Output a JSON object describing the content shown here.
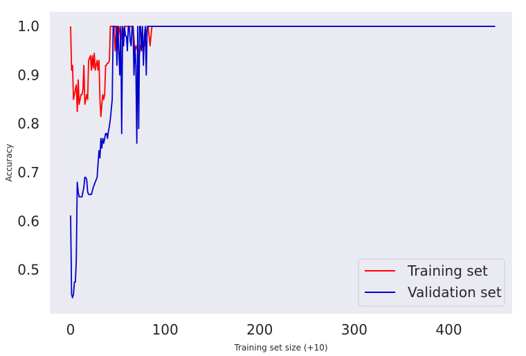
{
  "chart_data": {
    "type": "line",
    "title": "",
    "xlabel": "Training set size (+10)",
    "ylabel": "Accuracy",
    "xlim": [
      -22,
      467
    ],
    "ylim": [
      0.41,
      1.03
    ],
    "xticks": [
      0,
      100,
      200,
      300,
      400
    ],
    "yticks": [
      0.5,
      0.6,
      0.7,
      0.8,
      0.9,
      1.0
    ],
    "xtick_labels": [
      "0",
      "100",
      "200",
      "300",
      "400"
    ],
    "ytick_labels": [
      "0.5",
      "0.6",
      "0.7",
      "0.8",
      "0.9",
      "1.0"
    ],
    "grid": false,
    "background": "#eaeaf2",
    "legend_position": "lower-right",
    "series": [
      {
        "name": "Training set",
        "color": "#ff0000",
        "x": [
          0,
          1,
          2,
          3,
          4,
          5,
          6,
          7,
          8,
          9,
          10,
          11,
          12,
          13,
          14,
          15,
          16,
          17,
          18,
          19,
          20,
          21,
          22,
          23,
          24,
          25,
          26,
          27,
          28,
          29,
          30,
          31,
          32,
          33,
          34,
          35,
          36,
          37,
          38,
          39,
          40,
          41,
          42,
          43,
          44,
          45,
          46,
          47,
          48,
          49,
          50,
          51,
          52,
          53,
          54,
          55,
          56,
          57,
          58,
          60,
          62,
          64,
          66,
          68,
          70,
          72,
          74,
          76,
          78,
          80,
          82,
          84,
          86,
          88,
          90,
          100,
          150,
          200,
          250,
          300,
          350,
          400,
          449
        ],
        "y": [
          1.0,
          0.91,
          0.92,
          0.85,
          0.86,
          0.87,
          0.88,
          0.825,
          0.89,
          0.84,
          0.85,
          0.86,
          0.86,
          0.87,
          0.92,
          0.84,
          0.85,
          0.86,
          0.85,
          0.93,
          0.935,
          0.94,
          0.91,
          0.94,
          0.915,
          0.945,
          0.91,
          0.92,
          0.93,
          0.91,
          0.93,
          0.85,
          0.815,
          0.84,
          0.86,
          0.85,
          0.86,
          0.92,
          0.92,
          0.925,
          0.925,
          0.93,
          1.0,
          1.0,
          1.0,
          1.0,
          1.0,
          0.95,
          0.98,
          1.0,
          0.97,
          1.0,
          0.99,
          0.97,
          0.98,
          1.0,
          0.98,
          1.0,
          1.0,
          1.0,
          1.0,
          1.0,
          1.0,
          0.95,
          0.96,
          0.93,
          0.96,
          0.97,
          0.96,
          0.99,
          1.0,
          0.96,
          1.0,
          1.0,
          1.0,
          1.0,
          1.0,
          1.0,
          1.0,
          1.0,
          1.0,
          1.0,
          1.0
        ]
      },
      {
        "name": "Validation set",
        "color": "#0000cc",
        "x": [
          0,
          1,
          2,
          3,
          4,
          5,
          6,
          7,
          8,
          9,
          10,
          12,
          14,
          15,
          16,
          17,
          18,
          19,
          20,
          22,
          24,
          26,
          28,
          30,
          31,
          32,
          33,
          34,
          35,
          36,
          37,
          38,
          39,
          40,
          41,
          42,
          43,
          44,
          45,
          46,
          47,
          48,
          49,
          50,
          51,
          52,
          53,
          54,
          55,
          56,
          57,
          58,
          59,
          60,
          61,
          62,
          63,
          64,
          65,
          66,
          67,
          68,
          69,
          70,
          71,
          72,
          73,
          74,
          75,
          76,
          77,
          78,
          79,
          80,
          81,
          82,
          83,
          84,
          85,
          86,
          87,
          88,
          89,
          90,
          100,
          150,
          200,
          250,
          300,
          350,
          400,
          449
        ],
        "y": [
          0.612,
          0.45,
          0.443,
          0.45,
          0.475,
          0.475,
          0.52,
          0.68,
          0.66,
          0.65,
          0.65,
          0.65,
          0.67,
          0.69,
          0.69,
          0.685,
          0.66,
          0.655,
          0.655,
          0.655,
          0.67,
          0.68,
          0.69,
          0.745,
          0.73,
          0.77,
          0.75,
          0.77,
          0.76,
          0.77,
          0.78,
          0.78,
          0.77,
          0.785,
          0.795,
          0.81,
          0.83,
          0.85,
          1.0,
          1.0,
          1.0,
          1.0,
          0.92,
          1.0,
          0.95,
          0.9,
          1.0,
          0.78,
          1.0,
          0.96,
          1.0,
          0.98,
          0.98,
          0.95,
          1.0,
          1.0,
          0.97,
          0.96,
          1.0,
          1.0,
          0.9,
          0.96,
          0.92,
          0.76,
          1.0,
          0.79,
          1.0,
          1.0,
          0.95,
          1.0,
          0.92,
          0.98,
          1.0,
          0.9,
          1.0,
          1.0,
          1.0,
          1.0,
          1.0,
          1.0,
          1.0,
          1.0,
          1.0,
          1.0,
          1.0,
          1.0,
          1.0,
          1.0,
          1.0,
          1.0,
          1.0,
          1.0
        ]
      }
    ]
  }
}
